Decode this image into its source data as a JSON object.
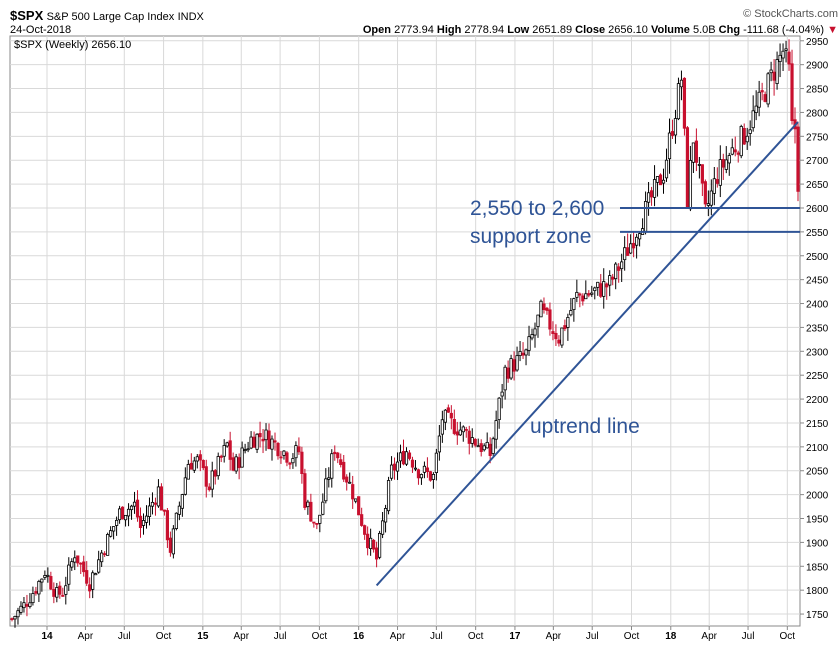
{
  "header": {
    "symbol": "$SPX",
    "name": "S&P 500 Large Cap Index",
    "exchange": "INDX",
    "date": "24-Oct-2018",
    "credit": "© StockCharts.com",
    "open_label": "Open",
    "open": "2773.94",
    "high_label": "High",
    "high": "2778.94",
    "low_label": "Low",
    "low": "2651.89",
    "close_label": "Close",
    "close": "2656.10",
    "volume_label": "Volume",
    "volume": "5.0B",
    "chg_label": "Chg",
    "chg": "-111.68 (-4.04%)"
  },
  "legend": {
    "text": "$SPX (Weekly) 2656.10"
  },
  "colors": {
    "up": "#000000",
    "down": "#c8102e",
    "annotation": "#2f5496",
    "grid": "#d9d9d9"
  },
  "chart_data": {
    "type": "candlestick",
    "title": "",
    "ylim": [
      1725,
      2960
    ],
    "y_ticks": [
      1750,
      1800,
      1850,
      1900,
      1950,
      2000,
      2050,
      2100,
      2150,
      2200,
      2250,
      2300,
      2350,
      2400,
      2450,
      2500,
      2550,
      2600,
      2650,
      2700,
      2750,
      2800,
      2850,
      2900,
      2950
    ],
    "x_tick_labels": [
      "14",
      "Apr",
      "Jul",
      "Oct",
      "15",
      "Apr",
      "Jul",
      "Oct",
      "16",
      "Apr",
      "Jul",
      "Oct",
      "17",
      "Apr",
      "Jul",
      "Oct",
      "18",
      "Apr",
      "Jul",
      "Oct"
    ],
    "x_tick_dates": [
      "2014-01-01",
      "2014-04-01",
      "2014-07-01",
      "2014-10-01",
      "2015-01-01",
      "2015-04-01",
      "2015-07-01",
      "2015-10-01",
      "2016-01-01",
      "2016-04-01",
      "2016-07-01",
      "2016-10-01",
      "2017-01-01",
      "2017-04-01",
      "2017-07-01",
      "2017-10-01",
      "2018-01-01",
      "2018-04-01",
      "2018-07-01",
      "2018-10-01"
    ],
    "x_range": [
      "2013-10-11",
      "2018-10-26"
    ],
    "close_series": [
      [
        "2013-10-11",
        1740
      ],
      [
        "2013-11-08",
        1768
      ],
      [
        "2013-12-06",
        1805
      ],
      [
        "2013-12-27",
        1840
      ],
      [
        "2014-01-24",
        1790
      ],
      [
        "2014-02-07",
        1797
      ],
      [
        "2014-03-07",
        1878
      ],
      [
        "2014-04-11",
        1815
      ],
      [
        "2014-05-09",
        1878
      ],
      [
        "2014-06-20",
        1962
      ],
      [
        "2014-07-25",
        1978
      ],
      [
        "2014-08-08",
        1931
      ],
      [
        "2014-09-19",
        2010
      ],
      [
        "2014-10-17",
        1886
      ],
      [
        "2014-11-28",
        2067
      ],
      [
        "2014-12-19",
        2070
      ],
      [
        "2015-01-16",
        2019
      ],
      [
        "2015-02-27",
        2104
      ],
      [
        "2015-03-13",
        2053
      ],
      [
        "2015-04-24",
        2117
      ],
      [
        "2015-05-22",
        2126
      ],
      [
        "2015-06-26",
        2101
      ],
      [
        "2015-07-24",
        2079
      ],
      [
        "2015-08-14",
        2091
      ],
      [
        "2015-08-28",
        1988
      ],
      [
        "2015-09-25",
        1931
      ],
      [
        "2015-11-06",
        2099
      ],
      [
        "2015-12-18",
        2005
      ],
      [
        "2016-01-22",
        1906
      ],
      [
        "2016-02-12",
        1865
      ],
      [
        "2016-03-18",
        2049
      ],
      [
        "2016-04-22",
        2091
      ],
      [
        "2016-05-20",
        2052
      ],
      [
        "2016-06-24",
        2037
      ],
      [
        "2016-07-15",
        2161
      ],
      [
        "2016-09-09",
        2128
      ],
      [
        "2016-11-04",
        2085
      ],
      [
        "2016-12-09",
        2259
      ],
      [
        "2017-01-27",
        2294
      ],
      [
        "2017-03-03",
        2383
      ],
      [
        "2017-04-14",
        2329
      ],
      [
        "2017-05-26",
        2415
      ],
      [
        "2017-06-30",
        2423
      ],
      [
        "2017-08-11",
        2441
      ],
      [
        "2017-09-15",
        2500
      ],
      [
        "2017-10-27",
        2581
      ],
      [
        "2017-12-15",
        2675
      ],
      [
        "2018-01-26",
        2872
      ],
      [
        "2018-02-09",
        2619
      ],
      [
        "2018-02-23",
        2747
      ],
      [
        "2018-03-23",
        2588
      ],
      [
        "2018-04-20",
        2670
      ],
      [
        "2018-05-25",
        2721
      ],
      [
        "2018-06-22",
        2754
      ],
      [
        "2018-07-27",
        2818
      ],
      [
        "2018-08-24",
        2874
      ],
      [
        "2018-09-21",
        2929
      ],
      [
        "2018-10-05",
        2885
      ],
      [
        "2018-10-12",
        2767
      ],
      [
        "2018-10-19",
        2768
      ],
      [
        "2018-10-26",
        2656
      ]
    ],
    "lines": {
      "uptrend": {
        "start": [
          "2016-02-12",
          1810
        ],
        "end": [
          "2018-10-26",
          2780
        ]
      },
      "support_upper": 2600,
      "support_lower": 2550
    }
  },
  "annotations": {
    "support_range": "2,550 to 2,600",
    "support_zone": "support zone",
    "uptrend": "uptrend line"
  }
}
